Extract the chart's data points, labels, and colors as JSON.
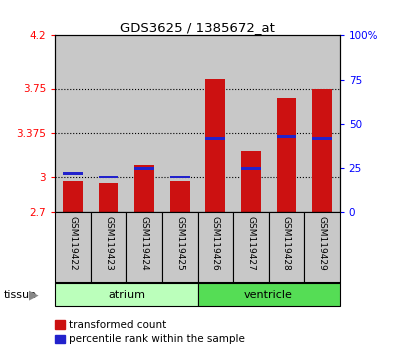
{
  "title": "GDS3625 / 1385672_at",
  "samples": [
    "GSM119422",
    "GSM119423",
    "GSM119424",
    "GSM119425",
    "GSM119426",
    "GSM119427",
    "GSM119428",
    "GSM119429"
  ],
  "transformed_count": [
    2.97,
    2.95,
    3.1,
    2.97,
    3.83,
    3.22,
    3.67,
    3.75
  ],
  "percentile_rank": [
    22,
    20,
    25,
    20,
    42,
    25,
    43,
    42
  ],
  "ymin": 2.7,
  "ymax": 4.2,
  "yticks": [
    2.7,
    3.0,
    3.375,
    3.75,
    4.2
  ],
  "ytick_labels": [
    "2.7",
    "3",
    "3.375",
    "3.75",
    "4.2"
  ],
  "grid_lines": [
    3.0,
    3.375,
    3.75
  ],
  "right_yticks": [
    0,
    25,
    50,
    75,
    100
  ],
  "right_ytick_labels": [
    "0",
    "25",
    "50",
    "75",
    "100%"
  ],
  "tissue_colors": {
    "atrium": "#bbffbb",
    "ventricle": "#55dd55"
  },
  "bar_color": "#cc1111",
  "blue_marker_color": "#2222cc",
  "base": 2.7,
  "bar_width": 0.55,
  "background_sample": "#c8c8c8",
  "legend_red": "transformed count",
  "legend_blue": "percentile rank within the sample"
}
